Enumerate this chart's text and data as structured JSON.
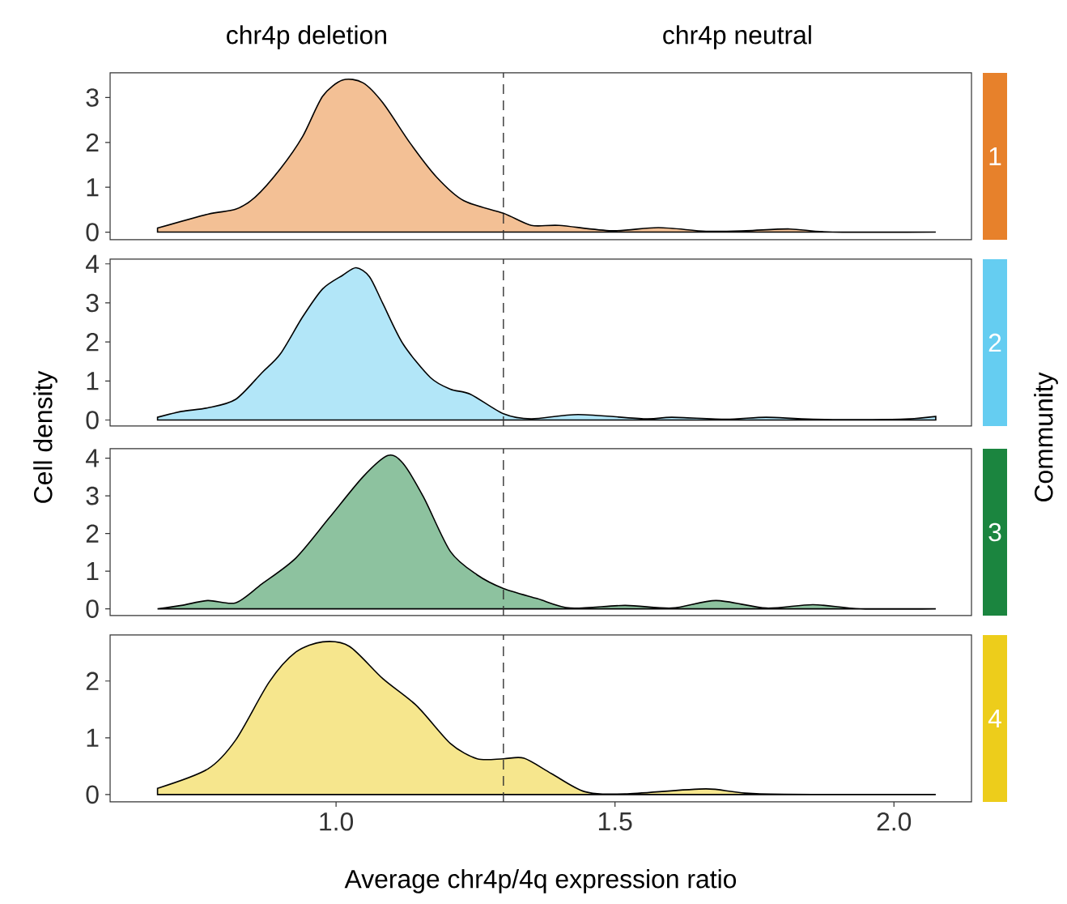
{
  "chart_data": [
    {
      "type": "area",
      "legend": "right",
      "annotations": [
        "chr4p deletion",
        "chr4p neutral"
      ],
      "xlim": [
        0.595,
        2.139
      ],
      "ylim": [
        -0.17,
        3.55
      ],
      "yticks": [
        0,
        1,
        2,
        3
      ],
      "tick_labels": "y",
      "series": [
        {
          "name": "1",
          "color": "#f3c095",
          "x": [
            0.68,
            0.77,
            0.82,
            0.855,
            0.9,
            0.94,
            0.976,
            1.012,
            1.048,
            1.084,
            1.133,
            1.18,
            1.229,
            1.3,
            1.35,
            1.4,
            1.494,
            1.578,
            1.663,
            1.735,
            1.813,
            1.89,
            2.075
          ],
          "values": [
            0.09,
            0.4,
            0.51,
            0.78,
            1.41,
            2.13,
            3.03,
            3.39,
            3.33,
            2.88,
            1.98,
            1.23,
            0.7,
            0.42,
            0.15,
            0.15,
            0.03,
            0.1,
            0.02,
            0.03,
            0.07,
            0.0,
            0.0
          ]
        }
      ],
      "ref_lines": [
        {
          "axis": "x",
          "value": 1.3,
          "line_style": "dashed"
        }
      ]
    },
    {
      "type": "area",
      "legend": "right",
      "ylabel": "Cell density",
      "y2label": "Community",
      "xlim": [
        0.595,
        2.139
      ],
      "ylim": [
        -0.155,
        4.12
      ],
      "yticks": [
        0,
        1,
        2,
        3,
        4
      ],
      "tick_labels": "y",
      "series": [
        {
          "name": "2",
          "color": "#b2e6f8",
          "x": [
            0.68,
            0.723,
            0.77,
            0.82,
            0.867,
            0.9,
            0.94,
            0.976,
            1.012,
            1.036,
            1.06,
            1.084,
            1.12,
            1.169,
            1.205,
            1.241,
            1.3,
            1.35,
            1.434,
            1.554,
            1.602,
            1.699,
            1.771,
            1.855,
            2.012,
            2.075
          ],
          "values": [
            0.07,
            0.22,
            0.31,
            0.53,
            1.21,
            1.69,
            2.64,
            3.36,
            3.71,
            3.9,
            3.67,
            2.98,
            1.95,
            1.09,
            0.79,
            0.66,
            0.16,
            0.03,
            0.14,
            0.03,
            0.07,
            0.02,
            0.07,
            0.02,
            0.02,
            0.09
          ]
        }
      ],
      "ref_lines": [
        {
          "axis": "x",
          "value": 1.3,
          "line_style": "dashed"
        }
      ]
    },
    {
      "type": "area",
      "legend": "right",
      "xlim": [
        0.595,
        2.139
      ],
      "ylim": [
        -0.18,
        4.25
      ],
      "yticks": [
        0,
        1,
        2,
        3,
        4
      ],
      "tick_labels": "y",
      "series": [
        {
          "name": "3",
          "color": "#8dc29f",
          "x": [
            0.68,
            0.723,
            0.77,
            0.82,
            0.867,
            0.928,
            0.988,
            1.048,
            1.093,
            1.12,
            1.157,
            1.205,
            1.253,
            1.3,
            1.361,
            1.42,
            1.518,
            1.602,
            1.681,
            1.771,
            1.855,
            1.94,
            2.075
          ],
          "values": [
            0.0,
            0.09,
            0.22,
            0.16,
            0.66,
            1.35,
            2.42,
            3.5,
            4.07,
            3.86,
            2.96,
            1.52,
            0.9,
            0.54,
            0.27,
            0.02,
            0.09,
            0.02,
            0.22,
            0.02,
            0.11,
            0.0,
            0.0
          ]
        }
      ],
      "ref_lines": [
        {
          "axis": "x",
          "value": 1.3,
          "line_style": "dashed"
        }
      ]
    },
    {
      "type": "area",
      "legend": "right",
      "xlabel": "Average chr4p/4q expression ratio",
      "xlim": [
        0.595,
        2.139
      ],
      "ylim": [
        -0.13,
        2.81
      ],
      "yticks": [
        0,
        1,
        2
      ],
      "xticks": [
        {
          "value": 1.0,
          "label": "1.0"
        },
        {
          "value": 1.5,
          "label": "1.5"
        },
        {
          "value": 2.0,
          "label": "2.0"
        }
      ],
      "series": [
        {
          "name": "4",
          "color": "#f6e68d",
          "x": [
            0.68,
            0.77,
            0.82,
            0.88,
            0.928,
            0.976,
            1.024,
            1.084,
            1.145,
            1.205,
            1.253,
            1.3,
            1.337,
            1.386,
            1.446,
            1.518,
            1.663,
            1.76,
            2.075
          ],
          "values": [
            0.11,
            0.45,
            0.96,
            1.98,
            2.51,
            2.69,
            2.61,
            2.04,
            1.56,
            0.9,
            0.63,
            0.63,
            0.64,
            0.37,
            0.05,
            0.01,
            0.1,
            0.01,
            0.0
          ]
        }
      ],
      "ref_lines": [
        {
          "axis": "x",
          "value": 1.3,
          "line_style": "dashed"
        }
      ]
    }
  ]
}
